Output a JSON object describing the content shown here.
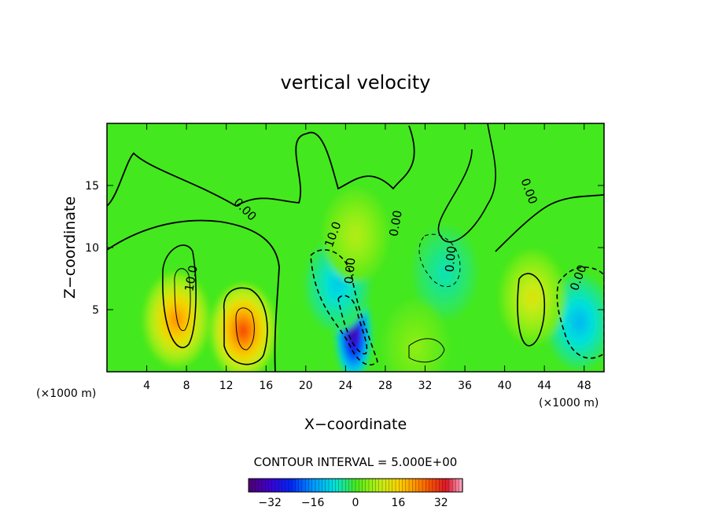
{
  "chart_data": {
    "type": "heatmap",
    "title": "vertical velocity",
    "xlabel": "X−coordinate",
    "ylabel": "Z−coordinate",
    "x_unit_label": "(×1000 m)",
    "y_unit_label": "(×1000 m)",
    "xlim": [
      0,
      50
    ],
    "ylim": [
      0,
      20
    ],
    "x_ticks": [
      4,
      8,
      12,
      16,
      20,
      24,
      28,
      32,
      36,
      40,
      44,
      48
    ],
    "y_ticks": [
      5,
      10,
      15
    ],
    "grid": false,
    "contour_interval_text": "CONTOUR INTERVAL = 5.000E+00",
    "contour_interval": 5.0,
    "contour_labels": [
      "10.0",
      "0.00",
      "0.00",
      "0.00",
      "0.00",
      "0.00",
      "0.00",
      "10.0"
    ],
    "colorbar": {
      "range": [
        -40,
        40
      ],
      "ticks": [
        "−32",
        "−16",
        "0",
        "16",
        "32"
      ],
      "tick_values": [
        -32,
        -16,
        0,
        16,
        32
      ]
    },
    "features": [
      {
        "kind": "updraft",
        "x": 7,
        "z": 4.2,
        "peak": 22
      },
      {
        "kind": "updraft",
        "x": 13.7,
        "z": 3.3,
        "peak": 28
      },
      {
        "kind": "downdraft",
        "x": 24.8,
        "z": 3.0,
        "peak": -36
      },
      {
        "kind": "downdraft",
        "x": 23.2,
        "z": 7.0,
        "peak": -10
      },
      {
        "kind": "downdraft",
        "x": 47.5,
        "z": 4.0,
        "peak": -12
      },
      {
        "kind": "updraft",
        "x": 42.8,
        "z": 6.0,
        "peak": 12
      },
      {
        "kind": "downdraft",
        "x": 34.0,
        "z": 8.0,
        "peak": -6
      },
      {
        "kind": "updraft",
        "x": 25.0,
        "z": 11.0,
        "peak": 8
      },
      {
        "kind": "updraft",
        "x": 31.0,
        "z": 2.0,
        "peak": 5
      }
    ]
  },
  "colors": {
    "background": "#ffffff",
    "ink": "#000000",
    "field_base": "#44e81e"
  }
}
